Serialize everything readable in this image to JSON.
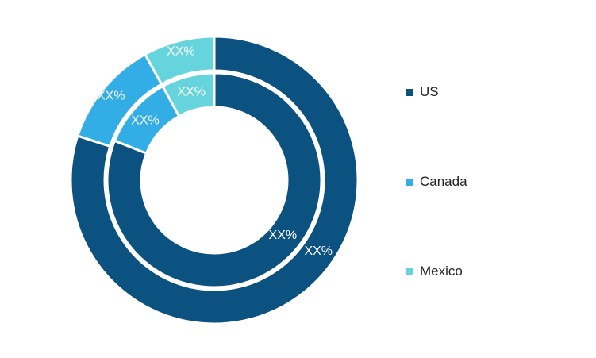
{
  "chart_data": {
    "type": "pie",
    "style": "nested-donut",
    "categories": [
      "US",
      "Canada",
      "Mexico"
    ],
    "series": [
      {
        "ring": "outer",
        "values": [
          80,
          12,
          8
        ],
        "labels": [
          "XX%",
          "XX%",
          "XX%"
        ]
      },
      {
        "ring": "inner",
        "values": [
          81,
          11,
          8
        ],
        "labels": [
          "XX%",
          "XX%",
          "XX%"
        ]
      }
    ],
    "colors": [
      "#0b5281",
      "#32ade5",
      "#66d4dc"
    ],
    "legend": {
      "position": "right",
      "items": [
        "US",
        "Canada",
        "Mexico"
      ]
    }
  }
}
